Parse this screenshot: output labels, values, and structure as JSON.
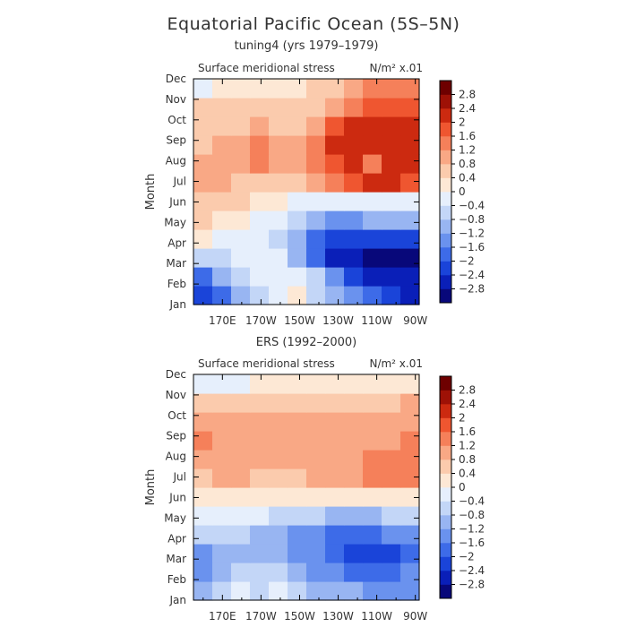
{
  "figure": {
    "title": "Equatorial Pacific Ocean (5S–5N)"
  },
  "chart_data": [
    {
      "type": "heatmap",
      "panel_title": "tuning4 (yrs 1979–1979)",
      "field_label": "Surface meridional stress",
      "units_label": "N/m² x.01",
      "xlabel": "",
      "ylabel": "Month",
      "x_ticks": [
        "170E",
        "170W",
        "150W",
        "130W",
        "110W",
        "90W"
      ],
      "x_tick_values": [
        170,
        190,
        210,
        230,
        250,
        270
      ],
      "xlim": [
        155,
        272
      ],
      "y_ticks": [
        "Jan",
        "Feb",
        "Mar",
        "Apr",
        "May",
        "Jun",
        "Jul",
        "Aug",
        "Sep",
        "Oct",
        "Nov",
        "Dec"
      ],
      "colorbar_ticks": [
        "2.8",
        "2.4",
        "2",
        "1.6",
        "1.2",
        "0.8",
        "0.4",
        "0",
        "−0.4",
        "−0.8",
        "−1.2",
        "−1.6",
        "−2",
        "−2.4",
        "−2.8"
      ],
      "z_rows_jan_to_dec": [
        [
          -2.4,
          -2.0,
          -1.2,
          -0.8,
          -0.2,
          0.1,
          -0.6,
          -1.2,
          -1.6,
          -2.0,
          -2.4,
          -2.6
        ],
        [
          -1.8,
          -1.2,
          -0.8,
          -0.4,
          -0.2,
          -0.1,
          -0.8,
          -1.6,
          -2.2,
          -2.6,
          -2.8,
          -2.8
        ],
        [
          -0.8,
          -0.6,
          -0.4,
          -0.2,
          -0.4,
          -0.9,
          -1.8,
          -2.6,
          -2.8,
          -3.0,
          -3.0,
          -3.0
        ],
        [
          0.0,
          -0.1,
          -0.2,
          -0.3,
          -0.6,
          -1.2,
          -1.8,
          -2.2,
          -2.4,
          -2.4,
          -2.4,
          -2.2
        ],
        [
          0.4,
          0.2,
          0.0,
          -0.1,
          -0.2,
          -0.6,
          -1.0,
          -1.4,
          -1.4,
          -1.2,
          -1.2,
          -1.0
        ],
        [
          0.6,
          0.5,
          0.4,
          0.3,
          0.2,
          -0.1,
          -0.2,
          -0.4,
          -0.4,
          -0.3,
          -0.2,
          -0.2
        ],
        [
          0.8,
          0.8,
          0.6,
          0.6,
          0.6,
          0.6,
          0.8,
          1.2,
          1.6,
          2.0,
          2.0,
          1.6
        ],
        [
          0.8,
          1.0,
          0.8,
          1.2,
          1.0,
          0.8,
          1.2,
          1.6,
          2.0,
          1.2,
          2.0,
          2.0
        ],
        [
          0.6,
          1.0,
          0.8,
          1.2,
          0.8,
          0.8,
          1.2,
          2.0,
          2.4,
          2.0,
          2.2,
          2.0
        ],
        [
          0.4,
          0.6,
          0.6,
          0.8,
          0.6,
          0.6,
          0.8,
          1.6,
          2.0,
          2.0,
          2.4,
          2.0
        ],
        [
          0.4,
          0.4,
          0.4,
          0.6,
          0.4,
          0.4,
          0.6,
          1.0,
          1.2,
          1.6,
          1.8,
          1.6
        ],
        [
          -0.2,
          0.2,
          0.2,
          0.2,
          0.2,
          0.2,
          0.4,
          0.6,
          0.8,
          1.2,
          1.4,
          1.2
        ]
      ]
    },
    {
      "type": "heatmap",
      "panel_title": "ERS (1992–2000)",
      "field_label": "Surface meridional stress",
      "units_label": "N/m² x.01",
      "xlabel": "",
      "ylabel": "Month",
      "x_ticks": [
        "170E",
        "170W",
        "150W",
        "130W",
        "110W",
        "90W"
      ],
      "x_tick_values": [
        170,
        190,
        210,
        230,
        250,
        270
      ],
      "xlim": [
        155,
        272
      ],
      "y_ticks": [
        "Jan",
        "Feb",
        "Mar",
        "Apr",
        "May",
        "Jun",
        "Jul",
        "Aug",
        "Sep",
        "Oct",
        "Nov",
        "Dec"
      ],
      "colorbar_ticks": [
        "2.8",
        "2.4",
        "2",
        "1.6",
        "1.2",
        "0.8",
        "0.4",
        "0",
        "−0.4",
        "−0.8",
        "−1.2",
        "−1.6",
        "−2",
        "−2.4",
        "−2.8"
      ],
      "z_rows_jan_to_dec": [
        [
          -1.2,
          -0.8,
          -0.4,
          -0.6,
          -0.4,
          -0.8,
          -1.0,
          -1.2,
          -1.2,
          -1.6,
          -1.6,
          -1.4
        ],
        [
          -1.6,
          -1.2,
          -0.8,
          -0.8,
          -0.8,
          -1.0,
          -1.4,
          -1.6,
          -1.8,
          -2.0,
          -1.8,
          -1.6
        ],
        [
          -1.6,
          -1.2,
          -1.2,
          -1.2,
          -1.2,
          -1.4,
          -1.6,
          -2.0,
          -2.2,
          -2.2,
          -2.2,
          -1.8
        ],
        [
          -0.6,
          -0.8,
          -0.8,
          -1.0,
          -1.2,
          -1.4,
          -1.6,
          -1.8,
          -1.8,
          -1.8,
          -1.6,
          -1.4
        ],
        [
          -0.4,
          -0.4,
          -0.4,
          -0.4,
          -0.6,
          -0.6,
          -0.8,
          -0.9,
          -1.0,
          -1.0,
          -0.8,
          -0.8
        ],
        [
          0.2,
          0.2,
          0.2,
          0.0,
          0.0,
          0.2,
          0.2,
          0.2,
          0.2,
          0.0,
          0.2,
          0.2
        ],
        [
          0.6,
          0.8,
          0.8,
          0.6,
          0.6,
          0.6,
          0.8,
          0.8,
          1.0,
          1.2,
          1.2,
          1.2
        ],
        [
          1.0,
          1.0,
          1.0,
          0.8,
          1.0,
          1.0,
          1.0,
          1.0,
          1.0,
          1.2,
          1.4,
          1.4
        ],
        [
          1.2,
          1.0,
          1.0,
          1.0,
          1.0,
          1.0,
          1.0,
          1.0,
          1.0,
          1.0,
          1.0,
          1.2
        ],
        [
          0.8,
          0.8,
          0.8,
          0.8,
          1.0,
          0.8,
          0.8,
          0.8,
          0.8,
          0.8,
          0.8,
          1.0
        ],
        [
          0.4,
          0.4,
          0.4,
          0.4,
          0.6,
          0.6,
          0.6,
          0.4,
          0.4,
          0.6,
          0.6,
          0.8
        ],
        [
          -0.2,
          -0.2,
          -0.2,
          0.0,
          0.0,
          0.2,
          0.2,
          0.2,
          0.2,
          0.2,
          0.2,
          0.2
        ]
      ]
    }
  ],
  "colors": {
    "levels": [
      "#08087a",
      "#0a1fb8",
      "#1a44d9",
      "#3d6be8",
      "#6a92ee",
      "#98b5f2",
      "#c3d6f7",
      "#e6effc",
      "#fde8d5",
      "#fbcbad",
      "#f9a885",
      "#f5805a",
      "#ef5630",
      "#cc2a10",
      "#9e1106",
      "#6e0000"
    ],
    "axis": "#000000",
    "text": "#333333"
  }
}
